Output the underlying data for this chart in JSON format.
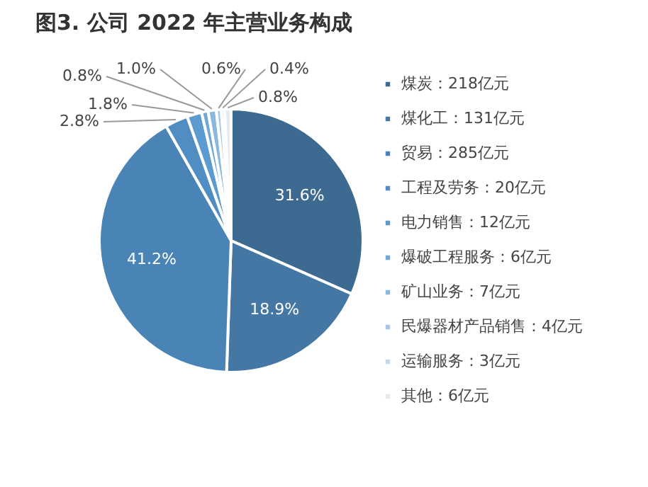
{
  "chart_data": {
    "type": "pie",
    "title": "图3. 公司 2022 年主营业务构成",
    "categories": [
      "煤炭：218亿元",
      "煤化工：131亿元",
      "贸易：285亿元",
      "工程及劳务：20亿元",
      "电力销售：12亿元",
      "爆破工程服务：6亿元",
      "矿山业务：7亿元",
      "民爆器材产品销售：4亿元",
      "运输服务：3亿元",
      "其他：6亿元"
    ],
    "values": [
      31.6,
      18.9,
      41.2,
      2.8,
      1.8,
      0.8,
      1.0,
      0.6,
      0.4,
      0.8
    ],
    "value_labels": [
      "31.6%",
      "18.9%",
      "41.2%",
      "2.8%",
      "1.8%",
      "0.8%",
      "1.0%",
      "0.6%",
      "0.4%",
      "0.8%"
    ],
    "colors": [
      "#3d6a91",
      "#4477a3",
      "#4a84b6",
      "#4f8dc2",
      "#5b9bd0",
      "#6ea8d6",
      "#8ab8dd",
      "#a5c8e6",
      "#c3daee",
      "#e3ecf5"
    ],
    "legend": "right"
  }
}
